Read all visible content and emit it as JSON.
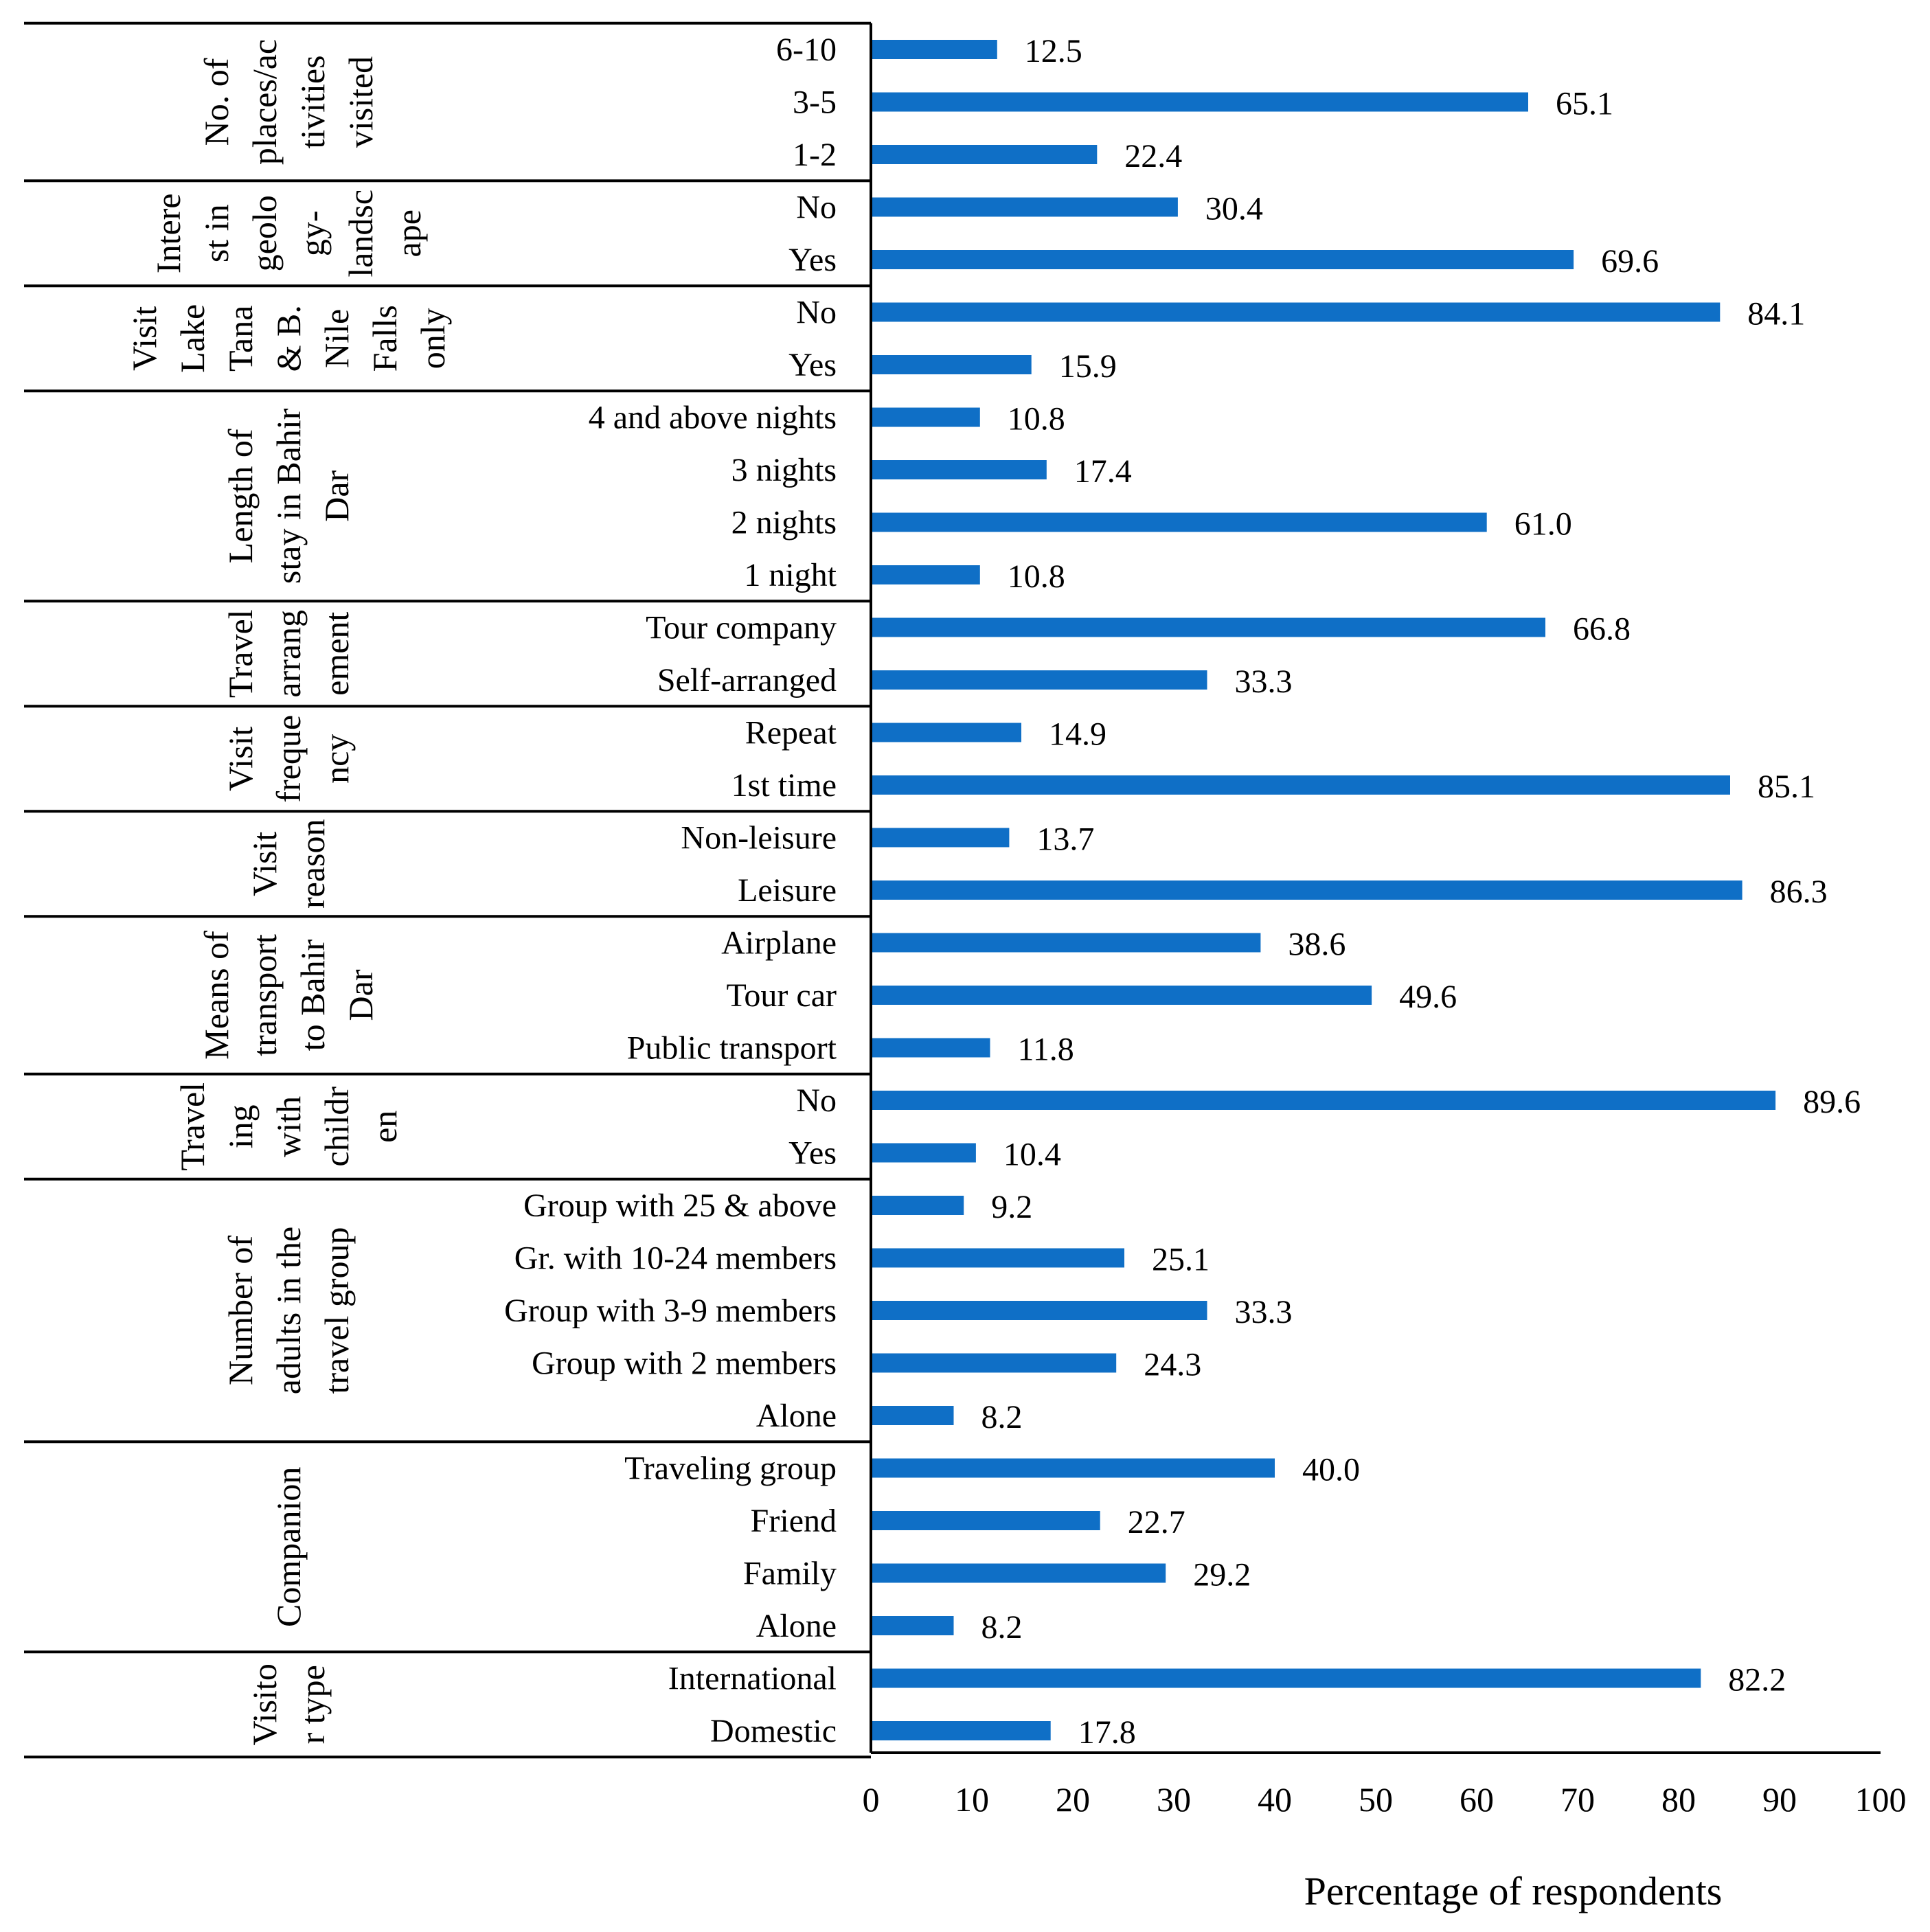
{
  "colors": {
    "bar": "#0f6fc6",
    "line": "#000000"
  },
  "chart_data": {
    "type": "bar",
    "orientation": "horizontal",
    "xlabel": "Percentage of respondents",
    "xlim": [
      0,
      100
    ],
    "xticks": [
      "0",
      "10",
      "20",
      "30",
      "40",
      "50",
      "60",
      "70",
      "80",
      "90",
      "100"
    ],
    "groups": [
      {
        "name": "No. of places/activities visited",
        "label_lines": [
          "No. of",
          "places/ac",
          "tivities",
          "visited"
        ],
        "items": [
          {
            "label": "6-10",
            "value": 12.5,
            "text": "12.5"
          },
          {
            "label": "3-5",
            "value": 65.1,
            "text": "65.1"
          },
          {
            "label": "1-2",
            "value": 22.4,
            "text": "22.4"
          }
        ]
      },
      {
        "name": "Interest in geology-landscape",
        "label_lines": [
          "Intere",
          "st in",
          "geolo",
          "gy-",
          "landsc",
          "ape"
        ],
        "items": [
          {
            "label": "No",
            "value": 30.4,
            "text": "30.4"
          },
          {
            "label": "Yes",
            "value": 69.6,
            "text": "69.6"
          }
        ]
      },
      {
        "name": "Visit Lake Tana & B. Nile Falls only",
        "label_lines": [
          "Visit",
          "Lake",
          "Tana",
          "& B.",
          "Nile",
          "Falls",
          "only"
        ],
        "items": [
          {
            "label": "No",
            "value": 84.1,
            "text": "84.1"
          },
          {
            "label": "Yes",
            "value": 15.9,
            "text": "15.9"
          }
        ]
      },
      {
        "name": "Length of stay in Bahir Dar",
        "label_lines": [
          "Length of",
          "stay in Bahir",
          "Dar"
        ],
        "items": [
          {
            "label": "4 and above nights",
            "value": 10.8,
            "text": "10.8"
          },
          {
            "label": "3 nights",
            "value": 17.4,
            "text": "17.4"
          },
          {
            "label": "2 nights",
            "value": 61.0,
            "text": "61.0"
          },
          {
            "label": "1 night",
            "value": 10.8,
            "text": "10.8"
          }
        ]
      },
      {
        "name": "Travel arrangement",
        "label_lines": [
          "Travel",
          "arrang",
          "ement"
        ],
        "items": [
          {
            "label": "Tour company",
            "value": 66.8,
            "text": "66.8"
          },
          {
            "label": "Self-arranged",
            "value": 33.3,
            "text": "33.3"
          }
        ]
      },
      {
        "name": "Visit frequency",
        "label_lines": [
          "Visit",
          "freque",
          "ncy"
        ],
        "items": [
          {
            "label": "Repeat",
            "value": 14.9,
            "text": "14.9"
          },
          {
            "label": "1st time",
            "value": 85.1,
            "text": "85.1"
          }
        ]
      },
      {
        "name": "Visit reason",
        "label_lines": [
          "Visit",
          "reason"
        ],
        "items": [
          {
            "label": "Non-leisure",
            "value": 13.7,
            "text": "13.7"
          },
          {
            "label": "Leisure",
            "value": 86.3,
            "text": "86.3"
          }
        ]
      },
      {
        "name": "Means of transport to Bahir Dar",
        "label_lines": [
          "Means of",
          "transport",
          "to Bahir",
          "Dar"
        ],
        "items": [
          {
            "label": "Airplane",
            "value": 38.6,
            "text": "38.6"
          },
          {
            "label": "Tour car",
            "value": 49.6,
            "text": "49.6"
          },
          {
            "label": "Public transport",
            "value": 11.8,
            "text": "11.8"
          }
        ]
      },
      {
        "name": "Traveling with children",
        "label_lines": [
          "Travel",
          "ing",
          "with",
          "childr",
          "en"
        ],
        "items": [
          {
            "label": "No",
            "value": 89.6,
            "text": "89.6"
          },
          {
            "label": "Yes",
            "value": 10.4,
            "text": "10.4"
          }
        ]
      },
      {
        "name": "Number of adults in the travel group",
        "label_lines": [
          "Number of",
          "adults in the",
          "travel group"
        ],
        "items": [
          {
            "label": "Group with 25 & above",
            "value": 9.2,
            "text": "9.2"
          },
          {
            "label": "Gr. with 10-24 members",
            "value": 25.1,
            "text": "25.1"
          },
          {
            "label": "Group with 3-9 members",
            "value": 33.3,
            "text": "33.3"
          },
          {
            "label": "Group with 2 members",
            "value": 24.3,
            "text": "24.3"
          },
          {
            "label": "Alone",
            "value": 8.2,
            "text": "8.2"
          }
        ]
      },
      {
        "name": "Companion",
        "label_lines": [
          "Companion"
        ],
        "items": [
          {
            "label": "Traveling group",
            "value": 40.0,
            "text": "40.0"
          },
          {
            "label": "Friend",
            "value": 22.7,
            "text": "22.7"
          },
          {
            "label": "Family",
            "value": 29.2,
            "text": "29.2"
          },
          {
            "label": "Alone",
            "value": 8.2,
            "text": "8.2"
          }
        ]
      },
      {
        "name": "Visitor type",
        "label_lines": [
          "Visito",
          "r type"
        ],
        "items": [
          {
            "label": "International",
            "value": 82.2,
            "text": "82.2"
          },
          {
            "label": "Domestic",
            "value": 17.8,
            "text": "17.8"
          }
        ]
      }
    ]
  }
}
